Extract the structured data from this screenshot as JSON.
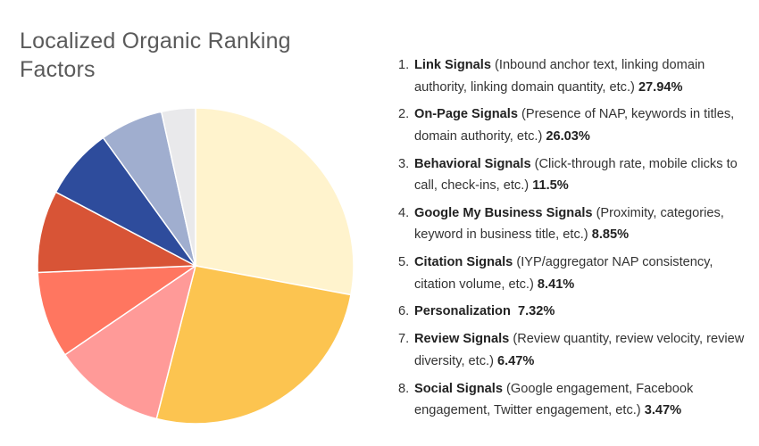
{
  "chart_data": {
    "type": "pie",
    "title": "Localized Organic Ranking Factors",
    "start": "top, clockwise",
    "legend_position": "right",
    "slices": [
      {
        "number": "1.",
        "name": "Link Signals",
        "description": "(Inbound anchor text, linking domain authority, linking domain quantity, etc.)",
        "value": 27.94,
        "label": "27.94%",
        "color": "#FFF3CD"
      },
      {
        "number": "2.",
        "name": "On-Page Signals",
        "description": "(Presence of NAP, keywords in titles, domain authority, etc.)",
        "value": 26.03,
        "label": "26.03%",
        "color": "#FCC450"
      },
      {
        "number": "3.",
        "name": "Behavioral Signals",
        "description": "(Click-through rate, mobile clicks to call, check-ins, etc.)",
        "value": 11.5,
        "label": "11.5%",
        "color": "#FF9A98"
      },
      {
        "number": "4.",
        "name": "Google My Business Signals",
        "description": "(Proximity, categories, keyword in business title, etc.)",
        "value": 8.85,
        "label": "8.85%",
        "color": "#FF7660"
      },
      {
        "number": "5.",
        "name": "Citation Signals",
        "description": "(IYP/aggregator NAP consistency, citation volume, etc.)",
        "value": 8.41,
        "label": "8.41%",
        "color": "#D85436"
      },
      {
        "number": "6.",
        "name": "Personalization",
        "description": "",
        "value": 7.32,
        "label": "7.32%",
        "color": "#2E4C9C"
      },
      {
        "number": "7.",
        "name": "Review Signals",
        "description": "(Review quantity, review velocity, review diversity, etc.)",
        "value": 6.47,
        "label": "6.47%",
        "color": "#A0AECF"
      },
      {
        "number": "8.",
        "name": "Social Signals",
        "description": "(Google engagement, Facebook engagement, Twitter engagement, etc.)",
        "value": 3.47,
        "label": "3.47%",
        "color": "#E9E9EB"
      }
    ]
  }
}
